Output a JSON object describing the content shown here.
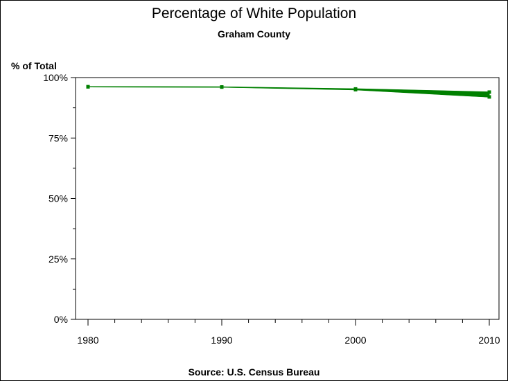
{
  "chart_data": {
    "type": "line",
    "title": "Percentage of White Population",
    "subtitle": "Graham County",
    "ylabel": "% of Total",
    "xlabel": "",
    "footnote": "Source: U.S. Census Bureau",
    "x": [
      1980,
      1990,
      2000,
      2010
    ],
    "x_tick_labels": [
      "1980",
      "1990",
      "2000",
      "2010"
    ],
    "xlim": [
      1980,
      2010
    ],
    "x_minor_step": 2,
    "ylim": [
      0,
      100
    ],
    "y_ticks": [
      0,
      25,
      50,
      75,
      100
    ],
    "y_tick_labels": [
      "0%",
      "25%",
      "50%",
      "75%",
      "100%"
    ],
    "y_minor_ticks": [
      12.5,
      37.5,
      62.5,
      87.5
    ],
    "grid": false,
    "legend": "none",
    "series": [
      {
        "values": [
          96.2,
          96.1,
          95.3,
          94.0
        ],
        "color": "#008000"
      },
      {
        "values": [
          96.2,
          96.1,
          95.0,
          92.0
        ],
        "color": "#008000"
      }
    ]
  }
}
